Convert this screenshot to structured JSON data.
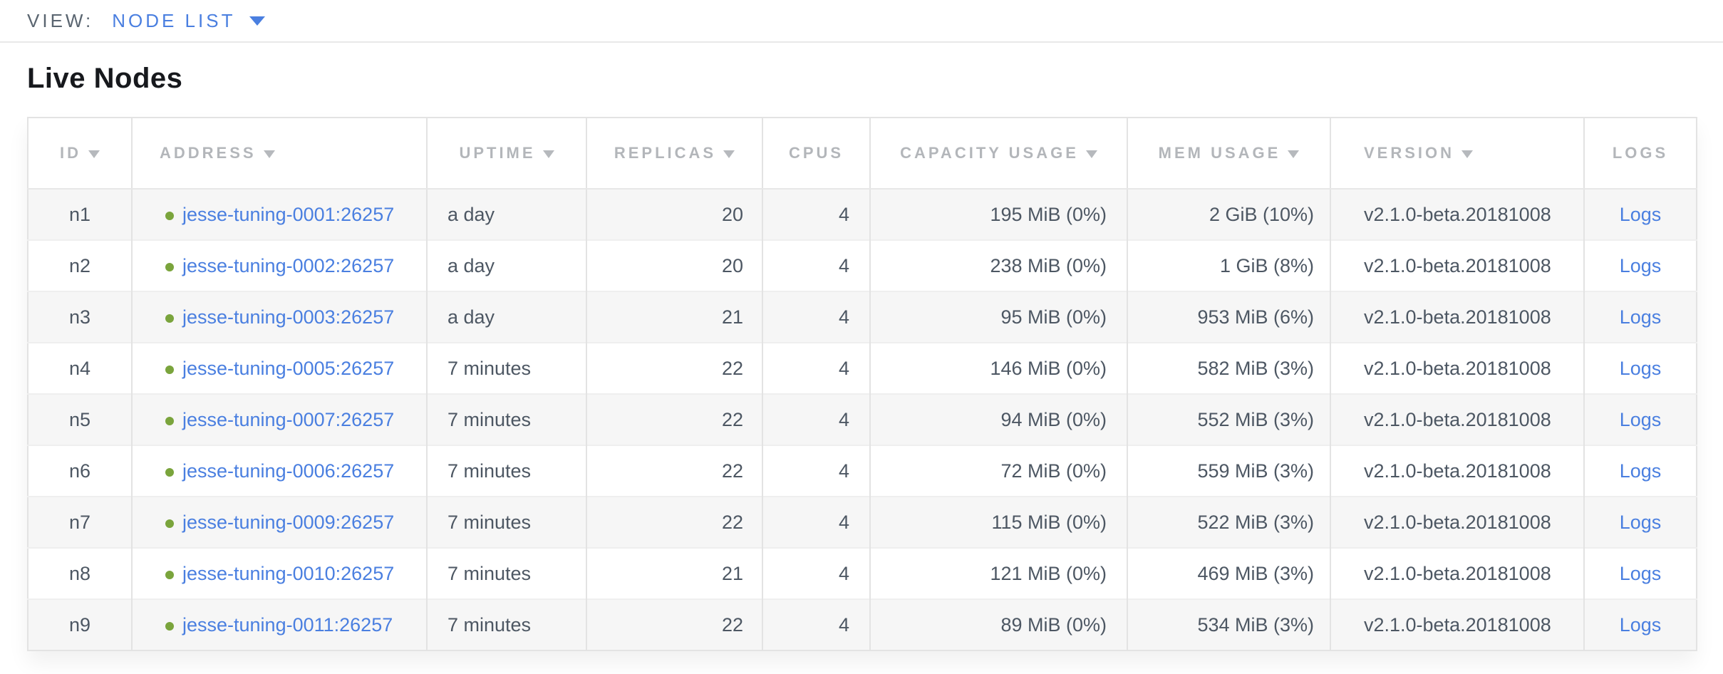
{
  "toolbar": {
    "view_label": "VIEW:",
    "view_value": "NODE LIST"
  },
  "heading": "Live Nodes",
  "colors": {
    "accent_blue": "#4a7fe0",
    "status_green": "#7aa43c",
    "header_gray": "#b3b6ba",
    "cell_text": "#4d5763",
    "striped_row": "#f6f6f6"
  },
  "icons": {
    "view_dropdown": "caret-down",
    "sort_indicator": "caret-down",
    "node_status": "green-dot"
  },
  "table": {
    "columns": [
      {
        "key": "id",
        "label": "ID",
        "sortable": true
      },
      {
        "key": "address",
        "label": "ADDRESS",
        "sortable": true
      },
      {
        "key": "uptime",
        "label": "UPTIME",
        "sortable": true
      },
      {
        "key": "replicas",
        "label": "REPLICAS",
        "sortable": true
      },
      {
        "key": "cpus",
        "label": "CPUS",
        "sortable": false
      },
      {
        "key": "capacity",
        "label": "CAPACITY USAGE",
        "sortable": true
      },
      {
        "key": "mem",
        "label": "MEM USAGE",
        "sortable": true
      },
      {
        "key": "version",
        "label": "VERSION",
        "sortable": true
      },
      {
        "key": "logs",
        "label": "LOGS",
        "sortable": false
      }
    ],
    "rows": [
      {
        "id": "n1",
        "status": "healthy",
        "address": "jesse-tuning-0001:26257",
        "uptime": "a day",
        "replicas": "20",
        "cpus": "4",
        "capacity": "195 MiB (0%)",
        "mem": "2 GiB (10%)",
        "version": "v2.1.0-beta.20181008",
        "logs": "Logs"
      },
      {
        "id": "n2",
        "status": "healthy",
        "address": "jesse-tuning-0002:26257",
        "uptime": "a day",
        "replicas": "20",
        "cpus": "4",
        "capacity": "238 MiB (0%)",
        "mem": "1 GiB (8%)",
        "version": "v2.1.0-beta.20181008",
        "logs": "Logs"
      },
      {
        "id": "n3",
        "status": "healthy",
        "address": "jesse-tuning-0003:26257",
        "uptime": "a day",
        "replicas": "21",
        "cpus": "4",
        "capacity": "95 MiB (0%)",
        "mem": "953 MiB (6%)",
        "version": "v2.1.0-beta.20181008",
        "logs": "Logs"
      },
      {
        "id": "n4",
        "status": "healthy",
        "address": "jesse-tuning-0005:26257",
        "uptime": "7 minutes",
        "replicas": "22",
        "cpus": "4",
        "capacity": "146 MiB (0%)",
        "mem": "582 MiB (3%)",
        "version": "v2.1.0-beta.20181008",
        "logs": "Logs"
      },
      {
        "id": "n5",
        "status": "healthy",
        "address": "jesse-tuning-0007:26257",
        "uptime": "7 minutes",
        "replicas": "22",
        "cpus": "4",
        "capacity": "94 MiB (0%)",
        "mem": "552 MiB (3%)",
        "version": "v2.1.0-beta.20181008",
        "logs": "Logs"
      },
      {
        "id": "n6",
        "status": "healthy",
        "address": "jesse-tuning-0006:26257",
        "uptime": "7 minutes",
        "replicas": "22",
        "cpus": "4",
        "capacity": "72 MiB (0%)",
        "mem": "559 MiB (3%)",
        "version": "v2.1.0-beta.20181008",
        "logs": "Logs"
      },
      {
        "id": "n7",
        "status": "healthy",
        "address": "jesse-tuning-0009:26257",
        "uptime": "7 minutes",
        "replicas": "22",
        "cpus": "4",
        "capacity": "115 MiB (0%)",
        "mem": "522 MiB (3%)",
        "version": "v2.1.0-beta.20181008",
        "logs": "Logs"
      },
      {
        "id": "n8",
        "status": "healthy",
        "address": "jesse-tuning-0010:26257",
        "uptime": "7 minutes",
        "replicas": "21",
        "cpus": "4",
        "capacity": "121 MiB (0%)",
        "mem": "469 MiB (3%)",
        "version": "v2.1.0-beta.20181008",
        "logs": "Logs"
      },
      {
        "id": "n9",
        "status": "healthy",
        "address": "jesse-tuning-0011:26257",
        "uptime": "7 minutes",
        "replicas": "22",
        "cpus": "4",
        "capacity": "89 MiB (0%)",
        "mem": "534 MiB (3%)",
        "version": "v2.1.0-beta.20181008",
        "logs": "Logs"
      }
    ]
  }
}
